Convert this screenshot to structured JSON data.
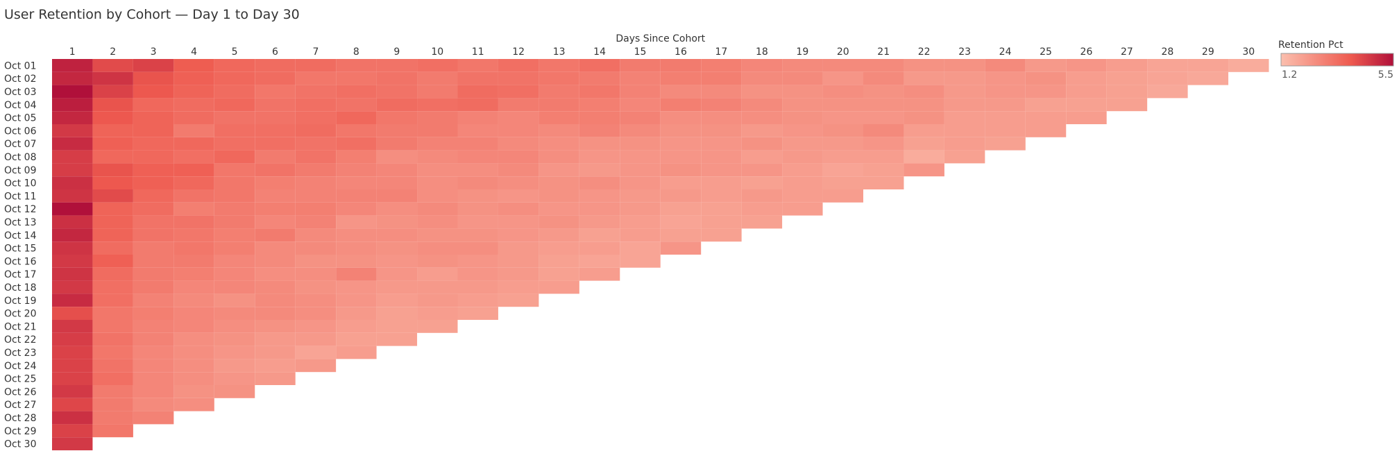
{
  "chart_data": {
    "type": "heatmap",
    "title": "User Retention by Cohort — Day 1 to Day 30",
    "xlabel": "Days Since Cohort",
    "ylabel": "",
    "x_categories": [
      "1",
      "2",
      "3",
      "4",
      "5",
      "6",
      "7",
      "8",
      "9",
      "10",
      "11",
      "12",
      "13",
      "14",
      "15",
      "16",
      "17",
      "18",
      "19",
      "20",
      "21",
      "22",
      "23",
      "24",
      "25",
      "26",
      "27",
      "28",
      "29",
      "30"
    ],
    "y_categories": [
      "Oct 01",
      "Oct 02",
      "Oct 03",
      "Oct 04",
      "Oct 05",
      "Oct 06",
      "Oct 07",
      "Oct 08",
      "Oct 09",
      "Oct 10",
      "Oct 11",
      "Oct 12",
      "Oct 13",
      "Oct 14",
      "Oct 15",
      "Oct 16",
      "Oct 17",
      "Oct 18",
      "Oct 19",
      "Oct 20",
      "Oct 21",
      "Oct 22",
      "Oct 23",
      "Oct 24",
      "Oct 25",
      "Oct 26",
      "Oct 27",
      "Oct 28",
      "Oct 29",
      "Oct 30"
    ],
    "values": [
      [
        5.1,
        4.2,
        4.4,
        3.8,
        3.5,
        3.4,
        3.4,
        3.2,
        3.2,
        3.3,
        3.1,
        3.3,
        3.1,
        3.3,
        3.0,
        3.0,
        2.9,
        2.7,
        2.6,
        2.6,
        2.6,
        2.4,
        2.4,
        2.6,
        2.2,
        2.3,
        2.1,
        1.9,
        1.9,
        1.7
      ],
      [
        5.0,
        4.7,
        4.0,
        3.7,
        3.5,
        3.4,
        3.1,
        3.1,
        3.2,
        3.0,
        3.2,
        3.2,
        3.1,
        3.0,
        2.8,
        2.9,
        2.9,
        2.6,
        2.6,
        2.3,
        2.6,
        2.2,
        2.2,
        2.3,
        2.4,
        2.1,
        2.0,
        1.9,
        1.8
      ],
      [
        5.5,
        4.4,
        3.9,
        3.6,
        3.4,
        3.1,
        3.2,
        3.3,
        3.2,
        3.0,
        3.4,
        3.3,
        3.0,
        3.1,
        2.8,
        2.6,
        2.6,
        2.4,
        2.4,
        2.5,
        2.4,
        2.5,
        2.2,
        2.3,
        2.3,
        2.1,
        2.0,
        1.8
      ],
      [
        5.2,
        4.0,
        3.5,
        3.4,
        3.5,
        3.2,
        3.3,
        3.2,
        3.4,
        3.3,
        3.4,
        3.0,
        3.0,
        2.9,
        2.7,
        2.9,
        2.8,
        2.6,
        2.4,
        2.4,
        2.4,
        2.4,
        2.2,
        2.2,
        2.0,
        2.0,
        2.0
      ],
      [
        5.0,
        3.9,
        3.6,
        3.4,
        3.2,
        3.2,
        3.3,
        3.5,
        3.1,
        3.0,
        2.8,
        2.7,
        2.9,
        2.9,
        2.8,
        2.5,
        2.5,
        2.5,
        2.4,
        2.3,
        2.3,
        2.4,
        2.1,
        2.1,
        2.1,
        2.1
      ],
      [
        4.6,
        3.6,
        3.6,
        3.0,
        3.3,
        3.3,
        3.4,
        3.1,
        3.0,
        3.0,
        2.7,
        2.7,
        2.6,
        2.8,
        2.6,
        2.4,
        2.4,
        2.2,
        2.3,
        2.4,
        2.6,
        2.1,
        2.1,
        2.1,
        2.1
      ],
      [
        4.9,
        3.7,
        3.5,
        3.5,
        3.3,
        3.3,
        3.2,
        3.3,
        3.0,
        2.8,
        2.8,
        2.6,
        2.5,
        2.4,
        2.4,
        2.3,
        2.3,
        2.4,
        2.2,
        2.2,
        2.3,
        2.0,
        2.1,
        2.0
      ],
      [
        4.5,
        3.5,
        3.5,
        3.3,
        3.5,
        3.0,
        3.2,
        2.9,
        2.5,
        2.6,
        2.7,
        2.7,
        2.5,
        2.3,
        2.3,
        2.3,
        2.3,
        2.1,
        2.2,
        2.1,
        2.1,
        1.7,
        2.0
      ],
      [
        4.5,
        4.0,
        3.7,
        3.7,
        3.1,
        3.2,
        3.0,
        2.8,
        2.7,
        2.5,
        2.5,
        2.6,
        2.3,
        2.2,
        2.3,
        2.4,
        2.3,
        2.3,
        2.1,
        1.9,
        2.0,
        2.3
      ],
      [
        4.8,
        3.9,
        3.7,
        3.5,
        3.1,
        2.9,
        2.8,
        2.7,
        2.7,
        2.5,
        2.6,
        2.5,
        2.4,
        2.5,
        2.3,
        2.1,
        2.1,
        2.0,
        2.1,
        2.0,
        2.0
      ],
      [
        4.7,
        4.2,
        3.5,
        3.2,
        3.1,
        2.8,
        2.8,
        2.8,
        2.8,
        2.5,
        2.4,
        2.3,
        2.4,
        2.3,
        2.2,
        2.2,
        2.1,
        2.2,
        2.1,
        2.1
      ],
      [
        5.5,
        3.6,
        3.4,
        2.9,
        3.0,
        2.9,
        2.9,
        2.7,
        2.5,
        2.6,
        2.4,
        2.5,
        2.3,
        2.3,
        2.2,
        2.0,
        2.0,
        2.1,
        2.1
      ],
      [
        4.8,
        3.6,
        3.2,
        3.2,
        3.0,
        2.7,
        2.8,
        2.3,
        2.4,
        2.5,
        2.3,
        2.3,
        2.4,
        2.2,
        2.1,
        1.9,
        2.0,
        2.0
      ],
      [
        5.0,
        3.6,
        3.2,
        3.1,
        2.9,
        3.0,
        2.6,
        2.5,
        2.5,
        2.4,
        2.4,
        2.3,
        2.2,
        2.0,
        2.1,
        2.0,
        2.0
      ],
      [
        4.7,
        3.4,
        3.0,
        3.1,
        2.9,
        2.6,
        2.6,
        2.5,
        2.4,
        2.5,
        2.5,
        2.2,
        2.1,
        2.1,
        1.9,
        2.3
      ],
      [
        4.6,
        3.7,
        3.0,
        3.0,
        2.7,
        2.6,
        2.4,
        2.4,
        2.3,
        2.4,
        2.3,
        2.2,
        2.0,
        1.9,
        1.9
      ],
      [
        4.7,
        3.4,
        3.0,
        2.9,
        2.7,
        2.5,
        2.5,
        2.8,
        2.3,
        2.1,
        2.3,
        2.2,
        2.0,
        2.1
      ],
      [
        4.6,
        3.3,
        3.0,
        2.7,
        2.7,
        2.6,
        2.4,
        2.3,
        2.2,
        2.2,
        2.2,
        2.1,
        2.1
      ],
      [
        4.9,
        3.3,
        2.8,
        2.6,
        2.4,
        2.6,
        2.5,
        2.3,
        2.1,
        2.2,
        2.1,
        2.0
      ],
      [
        4.1,
        3.1,
        2.9,
        2.7,
        2.6,
        2.6,
        2.5,
        2.2,
        2.0,
        2.1,
        2.0
      ],
      [
        4.6,
        3.1,
        2.8,
        2.7,
        2.5,
        2.4,
        2.3,
        2.1,
        2.0,
        2.0
      ],
      [
        4.5,
        3.2,
        2.8,
        2.5,
        2.4,
        2.2,
        2.2,
        2.0,
        2.0
      ],
      [
        4.4,
        3.1,
        2.7,
        2.5,
        2.3,
        2.2,
        1.9,
        2.1
      ],
      [
        4.4,
        3.2,
        2.7,
        2.5,
        2.2,
        2.1,
        2.2
      ],
      [
        4.4,
        3.3,
        2.7,
        2.5,
        2.3,
        2.2
      ],
      [
        4.6,
        3.0,
        2.7,
        2.4,
        2.4
      ],
      [
        4.3,
        3.0,
        2.6,
        2.5
      ],
      [
        4.8,
        3.0,
        2.8
      ],
      [
        4.4,
        3.1
      ],
      [
        4.6
      ]
    ],
    "color_scale": {
      "title": "Retention Pct",
      "min": 1.2,
      "max": 5.5,
      "min_label": "1.2",
      "max_label": "5.5",
      "low_color": "#fbbfae",
      "mid_color": "#ee5a4f",
      "high_color": "#b0103a"
    },
    "grid": false,
    "legend_position": "top-right"
  }
}
